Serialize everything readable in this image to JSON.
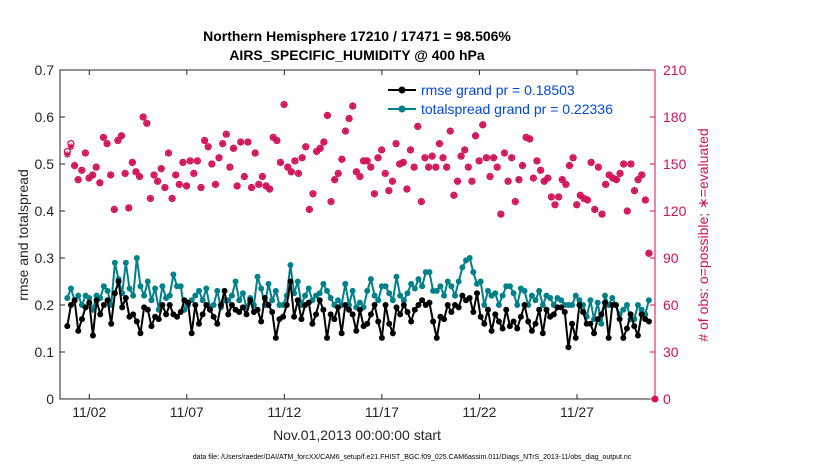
{
  "chart_data": {
    "type": "line",
    "title_line1": "Northern Hemisphere 17210 / 17471 = 98.506%",
    "title_line2": "AIRS_SPECIFIC_HUMIDITY @ 400 hPa",
    "xlabel": "Nov.01,2013 00:00:00 start",
    "ylabel_left": "rmse and totalspread",
    "ylabel_right": "# of obs: o=possible; ∗=evaluated",
    "footer": "data file: /Users/raeder/DAI/ATM_forcXX/CAM6_setup/f.e21.FHIST_BGC.f09_025.CAM6assim.011/Diags_NTrS_2013-11/obs_diag_output.nc",
    "xlim": [
      0.5,
      31.0
    ],
    "ylim_left": [
      0,
      0.7
    ],
    "ylim_right": [
      0,
      210
    ],
    "x_tick_labels": [
      "11/02",
      "11/07",
      "11/12",
      "11/17",
      "11/22",
      "11/27"
    ],
    "x_tick_values": [
      2,
      7,
      12,
      17,
      22,
      27
    ],
    "y_left_tick_labels": [
      "0",
      "0.1",
      "0.2",
      "0.3",
      "0.4",
      "0.5",
      "0.6",
      "0.7"
    ],
    "y_right_tick_labels": [
      "0",
      "30",
      "60",
      "90",
      "120",
      "150",
      "180",
      "210"
    ],
    "legend": [
      {
        "name": "rmse",
        "label": "rmse grand pr = 0.18503"
      },
      {
        "name": "totalspread",
        "label": "totalspread grand pr = 0.22336"
      }
    ],
    "colors": {
      "rmse": "#000000",
      "totalspread": "#00818a",
      "obs": "#d1125a"
    },
    "rmse_values": [
      0.155,
      0.2,
      0.21,
      0.145,
      0.17,
      0.195,
      0.205,
      0.135,
      0.21,
      0.18,
      0.2,
      0.21,
      0.16,
      0.225,
      0.25,
      0.195,
      0.215,
      0.175,
      0.18,
      0.165,
      0.14,
      0.195,
      0.19,
      0.155,
      0.175,
      0.17,
      0.2,
      0.18,
      0.2,
      0.18,
      0.175,
      0.185,
      0.21,
      0.205,
      0.14,
      0.2,
      0.16,
      0.18,
      0.2,
      0.19,
      0.175,
      0.16,
      0.2,
      0.23,
      0.18,
      0.2,
      0.19,
      0.185,
      0.195,
      0.18,
      0.21,
      0.185,
      0.19,
      0.165,
      0.215,
      0.2,
      0.185,
      0.13,
      0.17,
      0.175,
      0.2,
      0.25,
      0.175,
      0.21,
      0.17,
      0.2,
      0.205,
      0.16,
      0.18,
      0.21,
      0.19,
      0.13,
      0.18,
      0.17,
      0.195,
      0.14,
      0.2,
      0.19,
      0.18,
      0.145,
      0.19,
      0.155,
      0.16,
      0.18,
      0.2,
      0.165,
      0.13,
      0.2,
      0.16,
      0.14,
      0.195,
      0.18,
      0.2,
      0.185,
      0.165,
      0.19,
      0.2,
      0.21,
      0.2,
      0.205,
      0.165,
      0.13,
      0.175,
      0.17,
      0.2,
      0.185,
      0.2,
      0.195,
      0.22,
      0.21,
      0.215,
      0.185,
      0.225,
      0.175,
      0.16,
      0.19,
      0.145,
      0.18,
      0.165,
      0.15,
      0.19,
      0.155,
      0.165,
      0.15,
      0.175,
      0.2,
      0.165,
      0.145,
      0.16,
      0.19,
      0.14,
      0.19,
      0.175,
      0.18,
      0.195,
      0.195,
      0.185,
      0.11,
      0.16,
      0.13,
      0.2,
      0.185,
      0.16,
      0.16,
      0.14,
      0.17,
      0.18,
      0.205,
      0.13,
      0.2,
      0.2,
      0.17,
      0.13,
      0.15,
      0.18,
      0.155,
      0.135,
      0.18,
      0.17,
      0.165
    ],
    "spread_values": [
      0.215,
      0.235,
      0.21,
      0.22,
      0.2,
      0.22,
      0.215,
      0.19,
      0.22,
      0.215,
      0.24,
      0.23,
      0.2,
      0.29,
      0.255,
      0.225,
      0.29,
      0.235,
      0.22,
      0.3,
      0.24,
      0.22,
      0.25,
      0.21,
      0.235,
      0.19,
      0.24,
      0.215,
      0.22,
      0.265,
      0.24,
      0.24,
      0.19,
      0.2,
      0.21,
      0.22,
      0.23,
      0.21,
      0.235,
      0.195,
      0.2,
      0.23,
      0.195,
      0.21,
      0.21,
      0.22,
      0.25,
      0.21,
      0.225,
      0.195,
      0.215,
      0.2,
      0.26,
      0.235,
      0.2,
      0.245,
      0.21,
      0.23,
      0.2,
      0.2,
      0.22,
      0.285,
      0.225,
      0.25,
      0.2,
      0.22,
      0.235,
      0.21,
      0.22,
      0.225,
      0.245,
      0.23,
      0.215,
      0.2,
      0.21,
      0.2,
      0.245,
      0.2,
      0.23,
      0.195,
      0.205,
      0.195,
      0.23,
      0.255,
      0.22,
      0.21,
      0.24,
      0.24,
      0.225,
      0.21,
      0.26,
      0.22,
      0.21,
      0.225,
      0.245,
      0.235,
      0.255,
      0.24,
      0.27,
      0.27,
      0.23,
      0.23,
      0.24,
      0.22,
      0.25,
      0.24,
      0.22,
      0.25,
      0.28,
      0.295,
      0.3,
      0.27,
      0.245,
      0.25,
      0.2,
      0.23,
      0.22,
      0.225,
      0.2,
      0.22,
      0.24,
      0.24,
      0.225,
      0.2,
      0.235,
      0.23,
      0.2,
      0.22,
      0.21,
      0.23,
      0.2,
      0.22,
      0.215,
      0.2,
      0.215,
      0.21,
      0.2,
      0.2,
      0.2,
      0.22,
      0.21,
      0.2,
      0.175,
      0.21,
      0.17,
      0.205,
      0.16,
      0.22,
      0.2,
      0.215,
      0.2,
      0.18,
      0.19,
      0.2,
      0.17,
      0.17,
      0.2,
      0.19,
      0.18,
      0.21
    ],
    "obs_possible": [
      158,
      163,
      149,
      140,
      146,
      157,
      141,
      143,
      148,
      138,
      167,
      163,
      143,
      121,
      165,
      168,
      144,
      122,
      151,
      145,
      142,
      180,
      176,
      128,
      143,
      139,
      147,
      135,
      157,
      128,
      143,
      137,
      151,
      136,
      152,
      144,
      152,
      135,
      165,
      161,
      150,
      137,
      154,
      163,
      169,
      148,
      160,
      136,
      164,
      142,
      164,
      135,
      157,
      137,
      142,
      136,
      134,
      167,
      165,
      151,
      188,
      148,
      145,
      152,
      144,
      154,
      161,
      121,
      131,
      158,
      160,
      164,
      181,
      126,
      140,
      144,
      153,
      171,
      179,
      187,
      145,
      142,
      152,
      152,
      148,
      131,
      154,
      159,
      144,
      133,
      139,
      163,
      150,
      151,
      134,
      159,
      148,
      174,
      126,
      154,
      148,
      155,
      148,
      163,
      154,
      148,
      171,
      130,
      139,
      155,
      159,
      148,
      139,
      168,
      152,
      175,
      154,
      142,
      154,
      148,
      118,
      157,
      139,
      154,
      126,
      140,
      149,
      167,
      166,
      141,
      152,
      146,
      139,
      141,
      129,
      124,
      129,
      140,
      137,
      149,
      154,
      124,
      130,
      128,
      127,
      151,
      121,
      148,
      118,
      137,
      143,
      141,
      140,
      144,
      150,
      120,
      150,
      133,
      140,
      143,
      127,
      93
    ],
    "obs_evaluated": [
      156,
      161,
      149,
      140,
      146,
      157,
      141,
      143,
      148,
      138,
      167,
      163,
      143,
      121,
      165,
      168,
      144,
      122,
      151,
      145,
      142,
      180,
      176,
      128,
      143,
      139,
      147,
      135,
      157,
      128,
      143,
      137,
      151,
      136,
      152,
      144,
      152,
      135,
      165,
      161,
      150,
      137,
      154,
      163,
      169,
      148,
      160,
      136,
      164,
      142,
      164,
      135,
      157,
      137,
      142,
      136,
      134,
      167,
      165,
      151,
      188,
      148,
      145,
      152,
      144,
      154,
      161,
      121,
      131,
      158,
      160,
      164,
      181,
      126,
      140,
      144,
      153,
      171,
      179,
      187,
      145,
      142,
      152,
      152,
      148,
      131,
      154,
      159,
      144,
      133,
      139,
      163,
      150,
      151,
      134,
      159,
      148,
      174,
      126,
      154,
      148,
      155,
      148,
      163,
      154,
      148,
      171,
      130,
      139,
      155,
      159,
      148,
      139,
      168,
      152,
      175,
      154,
      142,
      154,
      148,
      118,
      157,
      139,
      154,
      126,
      140,
      149,
      167,
      166,
      141,
      152,
      146,
      139,
      141,
      129,
      124,
      129,
      140,
      137,
      149,
      154,
      124,
      130,
      128,
      127,
      151,
      121,
      148,
      118,
      137,
      143,
      141,
      140,
      144,
      150,
      120,
      150,
      133,
      140,
      143,
      127,
      93
    ]
  }
}
